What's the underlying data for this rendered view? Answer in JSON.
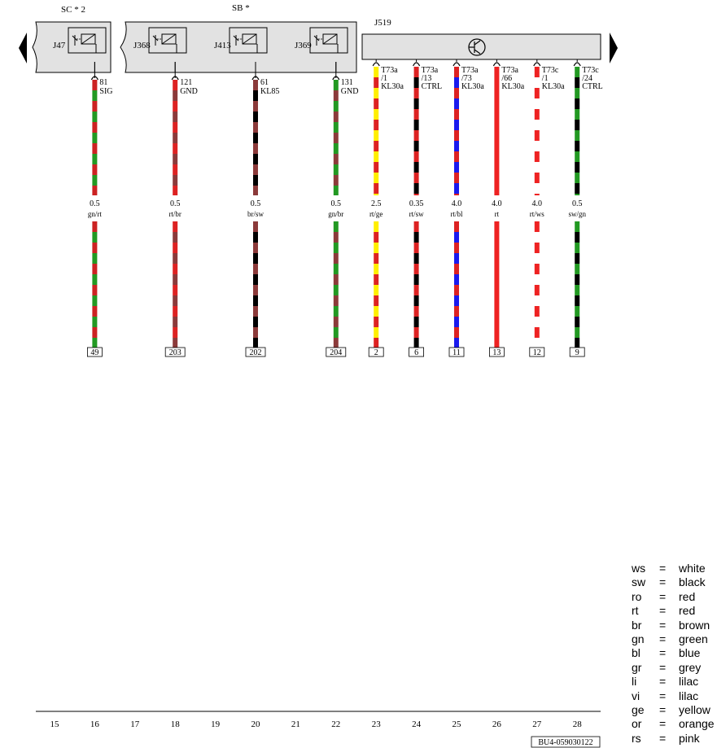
{
  "headers": {
    "sc": "SC * 2",
    "sb": "SB  *",
    "j519": "J519"
  },
  "relays": [
    {
      "label": "J47"
    },
    {
      "label": "J368"
    },
    {
      "label": "J413"
    },
    {
      "label": "J369"
    }
  ],
  "wires": [
    {
      "col": "16",
      "pin": "81",
      "func": "SIG",
      "size": "0.5",
      "color": "gn/rt",
      "conn": "49",
      "stripes": [
        "#cc2222",
        "#229922"
      ],
      "t1": "",
      "t2": "",
      "mod": "fuse"
    },
    {
      "col": "18",
      "pin": "121",
      "func": "GND",
      "size": "0.5",
      "color": "rt/br",
      "conn": "203",
      "stripes": [
        "#dd2222",
        "#8b3a3a"
      ],
      "t1": "",
      "t2": "",
      "mod": "fuse"
    },
    {
      "col": "20",
      "pin": "61",
      "func": "KL85",
      "size": "0.5",
      "color": "br/sw",
      "conn": "202",
      "stripes": [
        "#8b3a3a",
        "#000000"
      ],
      "t1": "",
      "t2": "",
      "mod": "fuse"
    },
    {
      "col": "22",
      "pin": "131",
      "func": "GND",
      "size": "0.5",
      "color": "gn/br",
      "conn": "204",
      "stripes": [
        "#229922",
        "#8b3a3a"
      ],
      "t1": "",
      "t2": "",
      "mod": "fuse"
    },
    {
      "col": "23",
      "pin": "",
      "func": "KL30a",
      "size": "2.5",
      "color": "rt/ge",
      "conn": "2",
      "stripes": [
        "#ffee00",
        "#dd2222"
      ],
      "t1": "T73a",
      "t2": "/1",
      "mod": "j519"
    },
    {
      "col": "24",
      "pin": "",
      "func": "CTRL",
      "size": "0.35",
      "color": "rt/sw",
      "conn": "6",
      "stripes": [
        "#dd2222",
        "#000000"
      ],
      "t1": "T73a",
      "t2": "/13",
      "mod": "j519"
    },
    {
      "col": "25",
      "pin": "",
      "func": "KL30a",
      "size": "4.0",
      "color": "rt/bl",
      "conn": "11",
      "stripes": [
        "#dd2222",
        "#1a1aee"
      ],
      "t1": "T73a",
      "t2": "/73",
      "mod": "j519"
    },
    {
      "col": "26",
      "pin": "",
      "func": "KL30a",
      "size": "4.0",
      "color": "rt",
      "conn": "13",
      "stripes": [
        "#ee2222"
      ],
      "t1": "T73a",
      "t2": "/66",
      "mod": "j519"
    },
    {
      "col": "27",
      "pin": "",
      "func": "KL30a",
      "size": "4.0",
      "color": "rt/ws",
      "conn": "12",
      "stripes": [
        "#ee2222",
        "#ffffff"
      ],
      "t1": "T73c",
      "t2": "/1",
      "mod": "j519"
    },
    {
      "col": "28",
      "pin": "",
      "func": "CTRL",
      "size": "0.5",
      "color": "sw/gn",
      "conn": "9",
      "stripes": [
        "#229922",
        "#000000"
      ],
      "t1": "T73c",
      "t2": "/24",
      "mod": "j519"
    }
  ],
  "ruler": [
    "15",
    "16",
    "17",
    "18",
    "19",
    "20",
    "21",
    "22",
    "23",
    "24",
    "25",
    "26",
    "27",
    "28"
  ],
  "doc_code": "BU4-059030122",
  "legend": [
    {
      "abbr": "ws",
      "eq": "=",
      "name": "white"
    },
    {
      "abbr": "sw",
      "eq": "=",
      "name": "black"
    },
    {
      "abbr": "ro",
      "eq": "=",
      "name": "red"
    },
    {
      "abbr": "rt",
      "eq": "=",
      "name": "red"
    },
    {
      "abbr": "br",
      "eq": "=",
      "name": "brown"
    },
    {
      "abbr": "gn",
      "eq": "=",
      "name": "green"
    },
    {
      "abbr": "bl",
      "eq": "=",
      "name": "blue"
    },
    {
      "abbr": "gr",
      "eq": "=",
      "name": "grey"
    },
    {
      "abbr": "li",
      "eq": "=",
      "name": "lilac"
    },
    {
      "abbr": "vi",
      "eq": "=",
      "name": "lilac"
    },
    {
      "abbr": "ge",
      "eq": "=",
      "name": "yellow"
    },
    {
      "abbr": "or",
      "eq": "=",
      "name": "orange"
    },
    {
      "abbr": "rs",
      "eq": "=",
      "name": "pink"
    }
  ],
  "colors": {
    "module_fill": "#e2e2e2",
    "ink": "#000000"
  }
}
